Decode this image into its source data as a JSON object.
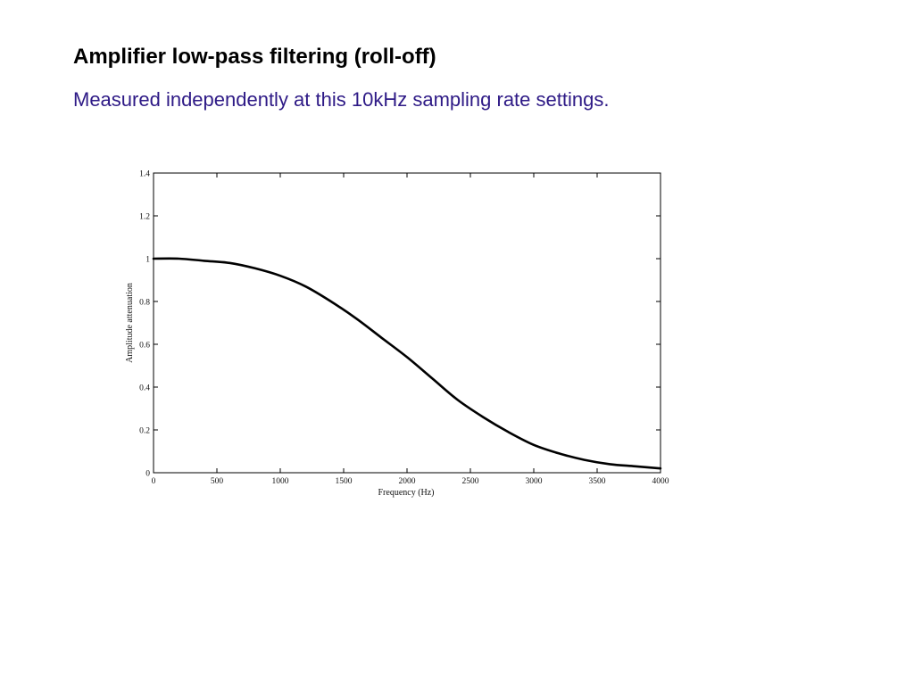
{
  "slide": {
    "title": "Amplifier low-pass filtering (roll-off)",
    "subtitle": "Measured independently at this 10kHz sampling rate settings."
  },
  "colors": {
    "title": "#000000",
    "subtitle": "#2e1a86",
    "curve": "#000000",
    "axes": "#000000"
  },
  "chart_data": {
    "type": "line",
    "title": "",
    "xlabel": "Frequency (Hz)",
    "ylabel": "Amplitude attenuation",
    "xlim": [
      0,
      4000
    ],
    "ylim": [
      0,
      1.4
    ],
    "xticks": [
      0,
      500,
      1000,
      1500,
      2000,
      2500,
      3000,
      3500,
      4000
    ],
    "yticks": [
      0,
      0.2,
      0.4,
      0.6,
      0.8,
      1,
      1.2,
      1.4
    ],
    "xtick_labels": [
      "0",
      "500",
      "1000",
      "1500",
      "2000",
      "2500",
      "3000",
      "3500",
      "4000"
    ],
    "ytick_labels": [
      "0",
      "0.2",
      "0.4",
      "0.6",
      "0.8",
      "1",
      "1.2",
      "1.4"
    ],
    "grid": false,
    "legend": "none",
    "series": [
      {
        "x": [
          0,
          200,
          400,
          600,
          800,
          1000,
          1200,
          1400,
          1600,
          1800,
          2000,
          2200,
          2400,
          2600,
          2800,
          3000,
          3200,
          3400,
          3600,
          3800,
          4000
        ],
        "y": [
          1.0,
          1.0,
          0.99,
          0.98,
          0.955,
          0.92,
          0.87,
          0.8,
          0.72,
          0.63,
          0.54,
          0.44,
          0.34,
          0.26,
          0.19,
          0.13,
          0.09,
          0.06,
          0.04,
          0.03,
          0.02
        ]
      }
    ]
  }
}
